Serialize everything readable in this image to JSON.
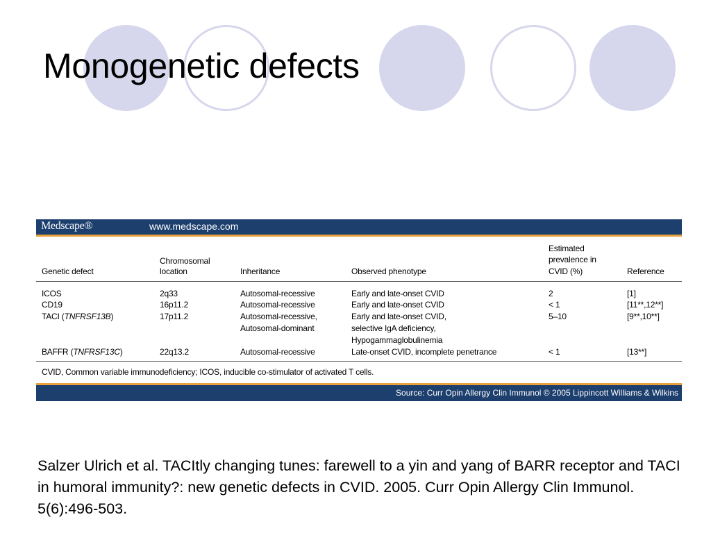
{
  "slide": {
    "title": "Monogenetic defects",
    "citation": "Salzer Ulrich et al. TACItly changing tunes: farewell to a yin and yang of BARR receptor and TACI in humoral immunity?: new genetic defects in CVID. 2005. Curr Opin Allergy Clin Immunol. 5(6):496-503."
  },
  "figure": {
    "brand": "Medscape®",
    "url": "www.medscape.com",
    "source": "Source: Curr Opin Allergy Clin Immunol © 2005 Lippincott Williams & Wilkins",
    "footnote": "CVID, Common variable immunodeficiency; ICOS, inducible co-stimulator of activated T cells.",
    "table": {
      "headers": {
        "genetic_defect": "Genetic defect",
        "chromosomal_1": "Chromosomal",
        "chromosomal_2": "location",
        "inheritance": "Inheritance",
        "phenotype": "Observed phenotype",
        "prevalence_1": "Estimated",
        "prevalence_2": "prevalence in",
        "prevalence_3": "CVID (%)",
        "reference": "Reference"
      },
      "rows": [
        {
          "defect": "ICOS",
          "gene": "",
          "location": "2q33",
          "inheritance": [
            "Autosomal-recessive"
          ],
          "phenotype": [
            "Early and late-onset CVID"
          ],
          "prevalence": "2",
          "reference": "[1]"
        },
        {
          "defect": "CD19",
          "gene": "",
          "location": "16p11.2",
          "inheritance": [
            "Autosomal-recessive"
          ],
          "phenotype": [
            "Early and late-onset CVID"
          ],
          "prevalence": "< 1",
          "reference": "[11**,12**]"
        },
        {
          "defect": "TACI (",
          "gene": "TNFRSF13B",
          "location": "17p11.2",
          "inheritance": [
            "Autosomal-recessive,",
            "Autosomal-dominant"
          ],
          "phenotype": [
            "Early and late-onset CVID,",
            "selective IgA deficiency,",
            "Hypogammaglobulinemia"
          ],
          "prevalence": "5–10",
          "reference": "[9**,10**]"
        },
        {
          "defect": "BAFFR (",
          "gene": "TNFRSF13C",
          "location": "22q13.2",
          "inheritance": [
            "Autosomal-recessive"
          ],
          "phenotype": [
            "Late-onset CVID, incomplete penetrance"
          ],
          "prevalence": "< 1",
          "reference": "[13**]"
        }
      ]
    }
  }
}
